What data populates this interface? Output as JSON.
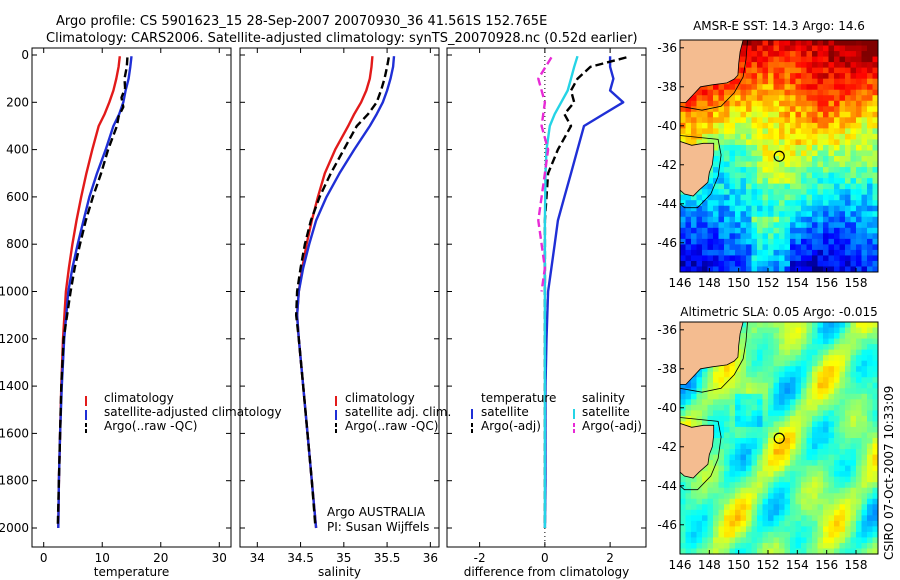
{
  "header": {
    "title_line1": "Argo profile: CS 5901623_15 28-Sep-2007 20070930_36 41.561S 152.765E",
    "title_line2": "Climatology: CARS2006. Satellite-adjusted climatology: synTS_20070928.nc (0.52d earlier)"
  },
  "colors": {
    "climatology": "#e21a1a",
    "satellite": "#1f2fd6",
    "argo": "#000000",
    "salinity_satellite": "#25d4e6",
    "salinity_argo": "#e82ad6",
    "land": "#f4bc90"
  },
  "chart_data": [
    {
      "type": "line",
      "id": "temperature-profile",
      "xlabel": "temperature",
      "ylabel": "",
      "xlim": [
        -2,
        32
      ],
      "ylim": [
        2050,
        0
      ],
      "xticks": [
        0,
        10,
        20,
        30
      ],
      "yticks": [
        0,
        200,
        400,
        600,
        800,
        1000,
        1200,
        1400,
        1600,
        1800,
        2000
      ],
      "series": [
        {
          "name": "climatology",
          "color": "#e21a1a",
          "dash": "",
          "x": [
            13.0,
            12.8,
            12.4,
            11.9,
            11.2,
            10.4,
            9.4,
            8.3,
            7.3,
            6.4,
            5.6,
            4.9,
            4.3,
            3.8,
            3.3,
            3.0,
            2.8,
            2.6,
            2.5
          ],
          "y": [
            5,
            50,
            100,
            150,
            200,
            250,
            300,
            400,
            500,
            600,
            700,
            800,
            900,
            1000,
            1200,
            1400,
            1600,
            1800,
            2000
          ]
        },
        {
          "name": "satellite-adjusted climatology",
          "color": "#1f2fd6",
          "dash": "",
          "x": [
            15.0,
            14.8,
            14.5,
            14.0,
            13.6,
            12.9,
            11.9,
            10.6,
            9.1,
            7.8,
            6.8,
            5.8,
            4.9,
            4.2,
            3.5,
            3.1,
            2.8,
            2.6,
            2.5
          ],
          "y": [
            5,
            50,
            100,
            150,
            200,
            250,
            300,
            400,
            500,
            600,
            700,
            800,
            900,
            1000,
            1200,
            1400,
            1600,
            1800,
            2000
          ]
        },
        {
          "name": "Argo(..raw -QC)",
          "color": "#000000",
          "dash": "8,4",
          "x": [
            14.3,
            14.2,
            13.8,
            13.9,
            13.3,
            13.6,
            12.8,
            12.5,
            11.0,
            9.8,
            8.4,
            7.2,
            6.2,
            5.3,
            4.6,
            4.0,
            3.4,
            3.0,
            2.8,
            2.6,
            2.4
          ],
          "y": [
            10,
            50,
            100,
            140,
            180,
            220,
            260,
            300,
            400,
            500,
            600,
            700,
            800,
            900,
            1000,
            1100,
            1200,
            1400,
            1600,
            1800,
            1990
          ]
        }
      ],
      "legend": {
        "position": "lower-left",
        "entries": [
          "climatology",
          "satellite-adjusted climatology",
          "Argo(..raw -QC)"
        ]
      }
    },
    {
      "type": "line",
      "id": "salinity-profile",
      "xlabel": "salinity",
      "ylabel": "",
      "xlim": [
        33.8,
        36.1
      ],
      "ylim": [
        2050,
        0
      ],
      "xticks": [
        34,
        34.5,
        35,
        35.5,
        36
      ],
      "series": [
        {
          "name": "climatology",
          "color": "#e21a1a",
          "dash": "",
          "x": [
            35.33,
            35.32,
            35.3,
            35.26,
            35.2,
            35.12,
            35.05,
            34.9,
            34.78,
            34.7,
            34.63,
            34.57,
            34.52,
            34.48,
            34.46,
            34.48,
            34.53,
            34.58,
            34.63,
            34.68
          ],
          "y": [
            5,
            50,
            100,
            150,
            200,
            250,
            300,
            400,
            500,
            600,
            700,
            800,
            900,
            1000,
            1100,
            1200,
            1400,
            1600,
            1800,
            2000
          ]
        },
        {
          "name": "satellite adj. clim.",
          "color": "#1f2fd6",
          "dash": "",
          "x": [
            35.58,
            35.57,
            35.54,
            35.5,
            35.45,
            35.38,
            35.3,
            35.12,
            34.95,
            34.8,
            34.68,
            34.6,
            34.53,
            34.48,
            34.46,
            34.48,
            34.53,
            34.58,
            34.63,
            34.68
          ],
          "y": [
            5,
            50,
            100,
            150,
            200,
            250,
            300,
            400,
            500,
            600,
            700,
            800,
            900,
            1000,
            1100,
            1200,
            1400,
            1600,
            1800,
            2000
          ]
        },
        {
          "name": "Argo(..raw -QC)",
          "color": "#000000",
          "dash": "8,4",
          "x": [
            35.52,
            35.5,
            35.47,
            35.43,
            35.38,
            35.28,
            35.15,
            35.0,
            34.85,
            34.72,
            34.62,
            34.55,
            34.5,
            34.46,
            34.45,
            34.48,
            34.53,
            34.58,
            34.63,
            34.67
          ],
          "y": [
            10,
            50,
            100,
            150,
            200,
            250,
            300,
            400,
            500,
            600,
            700,
            800,
            900,
            1000,
            1100,
            1200,
            1400,
            1600,
            1800,
            1990
          ]
        }
      ],
      "legend": {
        "position": "lower-left",
        "entries": [
          "climatology",
          "satellite adj. clim.",
          "Argo(..raw -QC)"
        ]
      },
      "annotation": [
        "Argo AUSTRALIA",
        "PI: Susan Wijffels"
      ]
    },
    {
      "type": "line",
      "id": "difference-profile",
      "xlabel": "difference from climatology",
      "ylabel": "",
      "xlim": [
        -3,
        3.1
      ],
      "ylim": [
        2050,
        0
      ],
      "xticks": [
        -2,
        0,
        2
      ],
      "zero_line": true,
      "series": [
        {
          "name": "temperature satellite",
          "color": "#1f2fd6",
          "dash": "",
          "x": [
            2.0,
            2.0,
            2.1,
            2.0,
            2.4,
            1.8,
            1.2,
            1.0,
            0.8,
            0.6,
            0.4,
            0.3,
            0.2,
            0.1,
            0.05,
            0.02,
            0.02,
            0.0
          ],
          "y": [
            5,
            50,
            100,
            150,
            200,
            250,
            300,
            400,
            500,
            600,
            700,
            800,
            900,
            1000,
            1200,
            1400,
            1800,
            2000
          ]
        },
        {
          "name": "temperature Argo(-adj)",
          "color": "#000000",
          "dash": "8,4",
          "x": [
            2.5,
            1.4,
            1.0,
            0.8,
            0.9,
            0.6,
            0.8,
            0.4,
            0.1,
            0.0,
            0.0,
            0.0,
            0.0
          ],
          "y": [
            10,
            50,
            100,
            150,
            200,
            250,
            300,
            400,
            500,
            700,
            1000,
            1400,
            2000
          ]
        },
        {
          "name": "salinity satellite",
          "color": "#25d4e6",
          "dash": "",
          "x": [
            1.0,
            0.9,
            0.8,
            0.7,
            0.5,
            0.3,
            0.15,
            0.05,
            0.02,
            0.0,
            0.0,
            0.0
          ],
          "y": [
            5,
            50,
            100,
            150,
            200,
            250,
            300,
            400,
            500,
            700,
            1000,
            2000
          ]
        },
        {
          "name": "salinity Argo(-adj)",
          "color": "#e82ad6",
          "dash": "8,4",
          "x": [
            0.2,
            -0.2,
            0.0,
            -0.1,
            0.1,
            0.0,
            -0.1,
            -0.2,
            -0.1,
            0.0,
            -0.1
          ],
          "y": [
            10,
            100,
            200,
            300,
            400,
            500,
            600,
            700,
            800,
            900,
            1000
          ]
        }
      ],
      "legend": {
        "position": "lower-center",
        "columns": [
          {
            "header": "temperature",
            "entries": [
              "satellite",
              "Argo(-adj)"
            ]
          },
          {
            "header": "salinity",
            "entries": [
              "satellite",
              "Argo(-adj)"
            ]
          }
        ]
      }
    },
    {
      "type": "heatmap",
      "id": "sst-map",
      "title": "AMSR-E SST: 14.3 Argo: 14.6",
      "xlim": [
        146,
        159.5
      ],
      "ylim": [
        -47.5,
        -35.6
      ],
      "xticks": [
        146,
        148,
        150,
        152,
        154,
        156,
        158
      ],
      "yticks": [
        -36,
        -38,
        -40,
        -42,
        -44,
        -46
      ],
      "marker": {
        "lon": 152.765,
        "lat": -41.561
      }
    },
    {
      "type": "heatmap",
      "id": "sla-map",
      "title": "Altimetric SLA: 0.05 Argo: -0.015",
      "xlim": [
        146,
        159.5
      ],
      "ylim": [
        -47.5,
        -35.6
      ],
      "xticks": [
        146,
        148,
        150,
        152,
        154,
        156,
        158
      ],
      "yticks": [
        -36,
        -38,
        -40,
        -42,
        -44,
        -46
      ],
      "marker": {
        "lon": 152.765,
        "lat": -41.561
      }
    }
  ],
  "legend_titles": {
    "temperature": "temperature",
    "salinity": "salinity"
  },
  "credit": "CSIRO 07-Oct-2007 10:33:09"
}
